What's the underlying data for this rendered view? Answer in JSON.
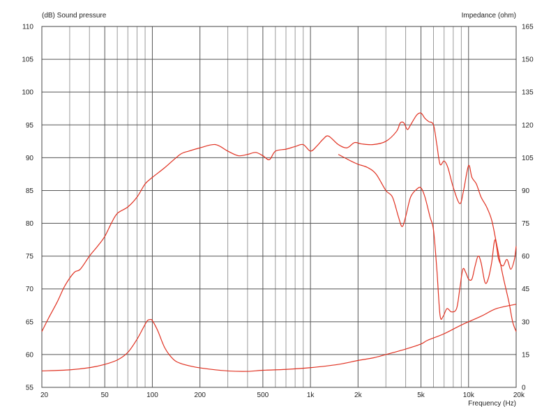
{
  "chart_data": {
    "type": "line",
    "title": "",
    "left_axis": {
      "label": "(dB)  Sound pressure",
      "min": 55,
      "max": 110,
      "step": 5,
      "ticks": [
        55,
        60,
        65,
        70,
        75,
        80,
        85,
        90,
        95,
        100,
        105,
        110
      ]
    },
    "right_axis": {
      "label": "Impedance  (ohm)",
      "min": 0,
      "max": 165,
      "step": 15,
      "ticks": [
        0,
        15,
        30,
        45,
        60,
        75,
        90,
        105,
        120,
        135,
        150,
        165
      ]
    },
    "x_axis": {
      "label": "Frequency  (Hz)",
      "scale": "log",
      "min": 20,
      "max": 20000,
      "tick_labels": [
        {
          "value": 20,
          "label": "20"
        },
        {
          "value": 50,
          "label": "50"
        },
        {
          "value": 100,
          "label": "100"
        },
        {
          "value": 200,
          "label": "200"
        },
        {
          "value": 500,
          "label": "500"
        },
        {
          "value": 1000,
          "label": "1k"
        },
        {
          "value": 2000,
          "label": "2k"
        },
        {
          "value": 5000,
          "label": "5k"
        },
        {
          "value": 10000,
          "label": "10k"
        },
        {
          "value": 20000,
          "label": "20k"
        }
      ]
    },
    "grid": true,
    "line_color": "#e03020",
    "series": [
      {
        "axis": "left",
        "values": [
          [
            20,
            63.5
          ],
          [
            22,
            65.5
          ],
          [
            25,
            68
          ],
          [
            28,
            70.5
          ],
          [
            32,
            72.5
          ],
          [
            35,
            73
          ],
          [
            40,
            75
          ],
          [
            45,
            76.5
          ],
          [
            50,
            78
          ],
          [
            55,
            80
          ],
          [
            60,
            81.5
          ],
          [
            70,
            82.5
          ],
          [
            80,
            84
          ],
          [
            90,
            86
          ],
          [
            100,
            87
          ],
          [
            120,
            88.5
          ],
          [
            150,
            90.5
          ],
          [
            170,
            91
          ],
          [
            200,
            91.5
          ],
          [
            250,
            92
          ],
          [
            300,
            91
          ],
          [
            350,
            90.3
          ],
          [
            400,
            90.5
          ],
          [
            450,
            90.8
          ],
          [
            500,
            90.3
          ],
          [
            550,
            89.7
          ],
          [
            600,
            91
          ],
          [
            700,
            91.3
          ],
          [
            800,
            91.7
          ],
          [
            900,
            92
          ],
          [
            1000,
            91
          ],
          [
            1100,
            91.8
          ],
          [
            1200,
            92.8
          ],
          [
            1300,
            93.3
          ],
          [
            1500,
            92
          ],
          [
            1700,
            91.5
          ],
          [
            1900,
            92.3
          ],
          [
            2100,
            92.1
          ],
          [
            2500,
            92
          ],
          [
            3000,
            92.5
          ],
          [
            3500,
            94
          ],
          [
            3700,
            95.3
          ],
          [
            3900,
            95.3
          ],
          [
            4100,
            94.3
          ],
          [
            4300,
            95
          ],
          [
            4700,
            96.5
          ],
          [
            5000,
            96.8
          ],
          [
            5300,
            96
          ],
          [
            5600,
            95.5
          ],
          [
            6000,
            95
          ],
          [
            6300,
            92
          ],
          [
            6600,
            89
          ],
          [
            7000,
            89.5
          ],
          [
            7400,
            88.5
          ],
          [
            8000,
            85.5
          ],
          [
            8800,
            83
          ],
          [
            9300,
            85
          ],
          [
            10000,
            88.8
          ],
          [
            10500,
            87
          ],
          [
            11200,
            86
          ],
          [
            12000,
            84
          ],
          [
            13000,
            82.5
          ],
          [
            14000,
            80.5
          ],
          [
            15000,
            77
          ],
          [
            16500,
            72
          ],
          [
            18000,
            68
          ],
          [
            19000,
            65
          ],
          [
            20000,
            63.5
          ]
        ]
      },
      {
        "axis": "left",
        "values": [
          [
            1500,
            90.5
          ],
          [
            1800,
            89.5
          ],
          [
            2000,
            89
          ],
          [
            2300,
            88.5
          ],
          [
            2600,
            87.5
          ],
          [
            3000,
            85
          ],
          [
            3300,
            84
          ],
          [
            3600,
            81
          ],
          [
            3800,
            79.5
          ],
          [
            4000,
            81
          ],
          [
            4300,
            84
          ],
          [
            4700,
            85.2
          ],
          [
            5000,
            85.4
          ],
          [
            5300,
            84
          ],
          [
            5700,
            81
          ],
          [
            6000,
            79
          ],
          [
            6300,
            73
          ],
          [
            6600,
            66
          ],
          [
            6900,
            65.8
          ],
          [
            7300,
            67
          ],
          [
            7800,
            66.5
          ],
          [
            8400,
            67
          ],
          [
            8800,
            70
          ],
          [
            9200,
            73
          ],
          [
            9600,
            72.5
          ],
          [
            10000,
            71.5
          ],
          [
            10500,
            71.5
          ],
          [
            11000,
            73.5
          ],
          [
            11500,
            75
          ],
          [
            12000,
            74
          ],
          [
            12700,
            71
          ],
          [
            13300,
            71.5
          ],
          [
            14000,
            74
          ],
          [
            14700,
            77.5
          ],
          [
            15500,
            74.5
          ],
          [
            16500,
            73.5
          ],
          [
            17500,
            74.5
          ],
          [
            18500,
            73
          ],
          [
            19500,
            74.5
          ],
          [
            20000,
            76.5
          ]
        ]
      },
      {
        "axis": "right",
        "values": [
          [
            20,
            7.5
          ],
          [
            30,
            8
          ],
          [
            40,
            9
          ],
          [
            50,
            10.5
          ],
          [
            60,
            12.5
          ],
          [
            70,
            16
          ],
          [
            80,
            22
          ],
          [
            88,
            27.5
          ],
          [
            93,
            30.5
          ],
          [
            97,
            31
          ],
          [
            100,
            30.5
          ],
          [
            108,
            26
          ],
          [
            120,
            18
          ],
          [
            135,
            13
          ],
          [
            150,
            11
          ],
          [
            180,
            9.5
          ],
          [
            220,
            8.5
          ],
          [
            300,
            7.5
          ],
          [
            400,
            7.3
          ],
          [
            500,
            7.8
          ],
          [
            700,
            8.2
          ],
          [
            1000,
            9
          ],
          [
            1500,
            10.5
          ],
          [
            2000,
            12.3
          ],
          [
            2500,
            13.5
          ],
          [
            3000,
            15
          ],
          [
            4000,
            17.5
          ],
          [
            5000,
            19.8
          ],
          [
            5500,
            21.5
          ],
          [
            7000,
            24.5
          ],
          [
            9000,
            28.5
          ],
          [
            12000,
            32.5
          ],
          [
            15000,
            36
          ],
          [
            20000,
            38
          ]
        ]
      }
    ]
  }
}
